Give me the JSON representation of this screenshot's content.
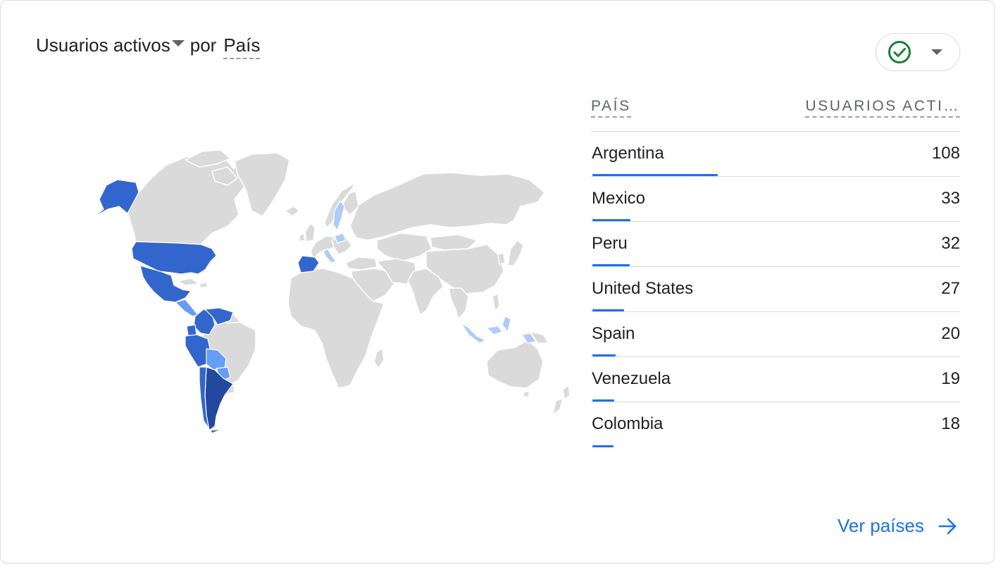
{
  "header": {
    "metric_label": "Usuarios activos",
    "connector": "por",
    "dimension_label": "País"
  },
  "status": {
    "icon": "check-circle-icon",
    "color": "#188038"
  },
  "table": {
    "col_country": "PAÍS",
    "col_users": "USUARIOS ACTI…",
    "rows": [
      {
        "country": "Argentina",
        "users": "108",
        "share": 1.0
      },
      {
        "country": "Mexico",
        "users": "33",
        "share": 0.3056
      },
      {
        "country": "Peru",
        "users": "32",
        "share": 0.2963
      },
      {
        "country": "United States",
        "users": "27",
        "share": 0.25
      },
      {
        "country": "Spain",
        "users": "20",
        "share": 0.1852
      },
      {
        "country": "Venezuela",
        "users": "19",
        "share": 0.1759
      },
      {
        "country": "Colombia",
        "users": "18",
        "share": 0.1667
      }
    ]
  },
  "map": {
    "land_color": "#dadada",
    "scale_colors": [
      "#aecbfa",
      "#669df6",
      "#3366cc",
      "#23489f"
    ]
  },
  "footer": {
    "link_label": "Ver países",
    "link_color": "#1a73e8"
  }
}
